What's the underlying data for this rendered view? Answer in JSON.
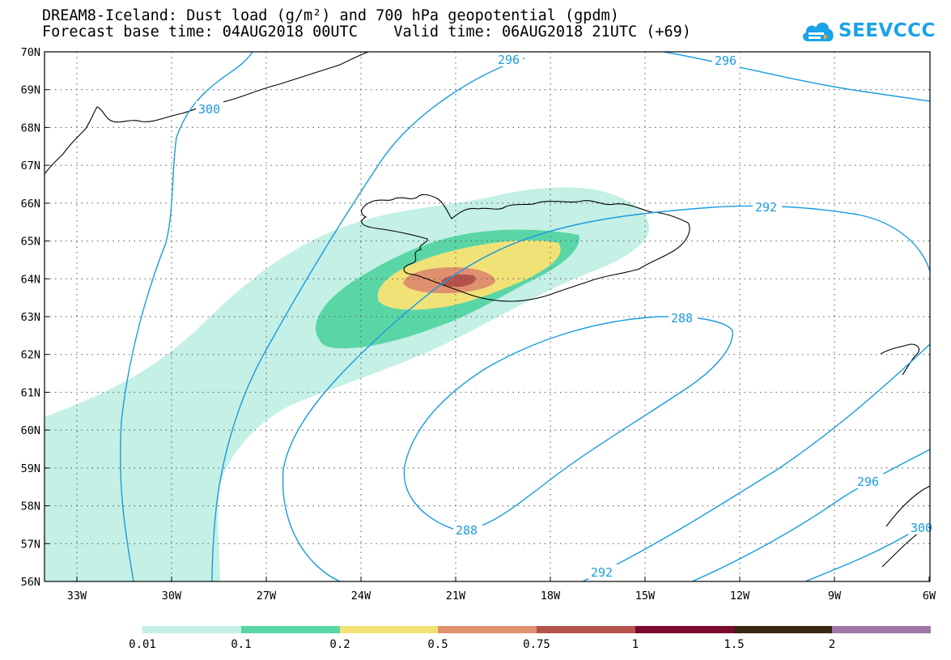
{
  "header": {
    "title_line1": "DREAM8-Iceland: Dust load (g/m²) and 700 hPa geopotential (gpdm)",
    "title_line2": "Forecast base time: 04AUG2018 00UTC    Valid time: 06AUG2018 21UTC (+69)"
  },
  "logo": {
    "text": "SEEVCCC",
    "icon": "cloud-icon",
    "color": "#1aa3e8"
  },
  "map": {
    "lon_range": [
      -34,
      -6
    ],
    "lat_range": [
      56,
      70
    ],
    "lat_ticks": [
      "70N",
      "69N",
      "68N",
      "67N",
      "66N",
      "65N",
      "64N",
      "63N",
      "62N",
      "61N",
      "60N",
      "59N",
      "58N",
      "57N",
      "56N"
    ],
    "lon_ticks": [
      "33W",
      "30W",
      "27W",
      "24W",
      "21W",
      "18W",
      "15W",
      "12W",
      "9W",
      "6W"
    ],
    "contour_color": "#1a9be0",
    "contour_labels": [
      "296",
      "296",
      "300",
      "292",
      "288",
      "288",
      "292",
      "296",
      "300"
    ]
  },
  "colorbar": {
    "labels": [
      "0.01",
      "0.1",
      "0.2",
      "0.5",
      "0.75",
      "1",
      "1.5",
      "2"
    ],
    "colors": [
      "#c4f0e6",
      "#5ad6a6",
      "#f1e278",
      "#e0906e",
      "#b5524c",
      "#7c0a2e",
      "#3a2512",
      "#9f77a8"
    ]
  }
}
